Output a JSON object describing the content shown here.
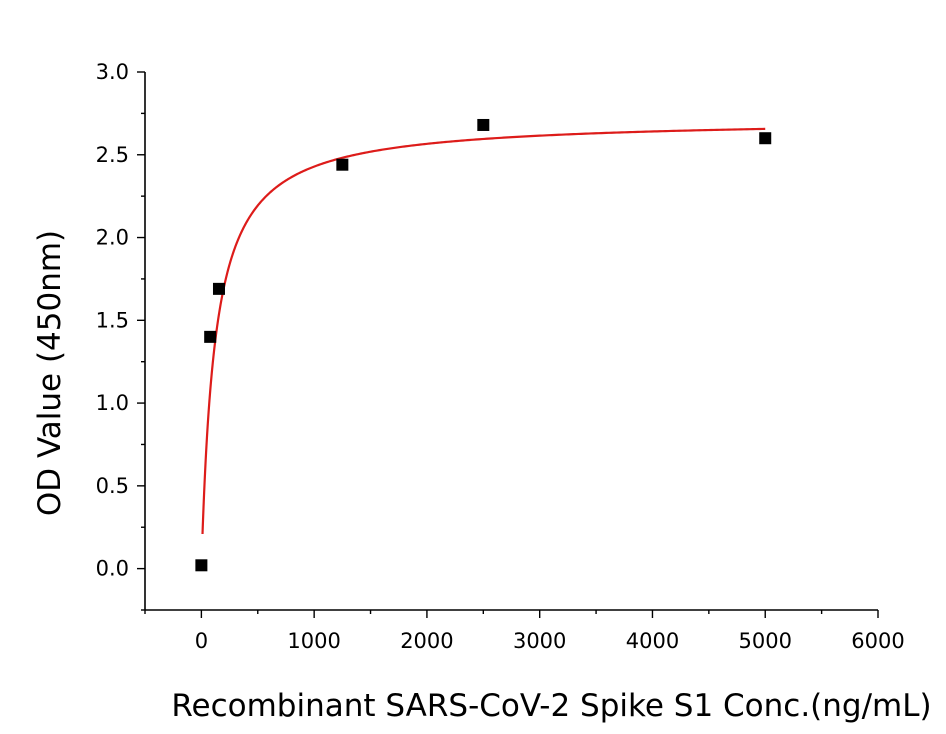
{
  "chart_data": {
    "type": "scatter",
    "title": "",
    "xlabel": "Recombinant SARS-CoV-2 Spike S1 Conc.(ng/mL)",
    "ylabel": "OD Value (450nm)",
    "xlim": [
      -500,
      6000
    ],
    "ylim": [
      -0.25,
      3.0
    ],
    "x_ticks": [
      0,
      1000,
      2000,
      3000,
      4000,
      5000,
      6000
    ],
    "x_tick_labels": [
      "0",
      "1000",
      "2000",
      "3000",
      "4000",
      "5000",
      "6000"
    ],
    "y_ticks": [
      0.0,
      0.5,
      1.0,
      1.5,
      2.0,
      2.5,
      3.0
    ],
    "y_tick_labels": [
      "0.0",
      "0.5",
      "1.0",
      "1.5",
      "2.0",
      "2.5",
      "3.0"
    ],
    "grid": false,
    "legend": "none",
    "series": [
      {
        "marker": "square",
        "color": "#000000",
        "x": [
          0,
          78,
          156,
          1250,
          2500,
          5000
        ],
        "y": [
          0.02,
          1.4,
          1.69,
          2.44,
          2.68,
          2.6
        ]
      }
    ],
    "fit_curve": {
      "color": "#dd1c1a",
      "model": "hyperbolic",
      "bmax": 2.72,
      "kd": 120,
      "x_range": [
        10,
        5000
      ]
    }
  }
}
